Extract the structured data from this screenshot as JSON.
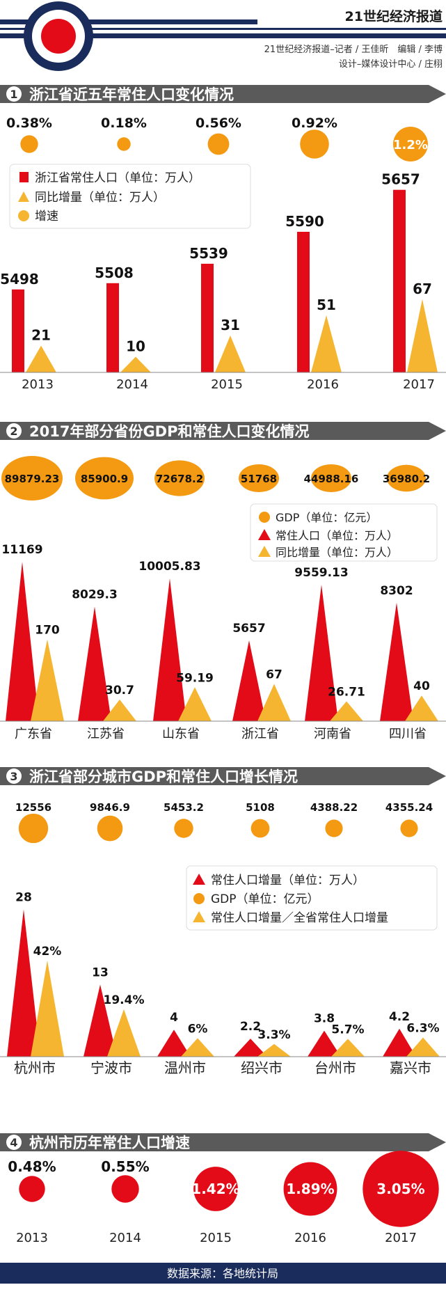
{
  "header": {
    "brand": "21世纪经济报道",
    "credit_line1": "21世纪经济报道–记者 / 王佳昕　编辑 / 李博",
    "credit_line2": "设计–媒体设计中心 / 庄栩"
  },
  "colors": {
    "red": "#e30b17",
    "orange": "#f39a12",
    "yellow": "#f5b530",
    "dark": "#333333",
    "navy": "#1a2c5b",
    "gray": "#5a5a5a"
  },
  "sections": [
    {
      "num": "1",
      "title": "浙江省近五年常住人口变化情况"
    },
    {
      "num": "2",
      "title": "2017年部分省份GDP和常住人口变化情况"
    },
    {
      "num": "3",
      "title": "浙江省部分城市GDP和常住人口增长情况"
    },
    {
      "num": "4",
      "title": "杭州市历年常住人口增速"
    }
  ],
  "footer": {
    "source": "数据来源：各地统计局"
  },
  "chart_data": [
    {
      "type": "bar",
      "categories": [
        "2013",
        "2014",
        "2015",
        "2016",
        "2017"
      ],
      "legend": [
        "浙江省常住人口（单位：万人）",
        "同比增量（单位：万人）",
        "增速"
      ],
      "series": [
        {
          "name": "浙江省常住人口（单位：万人）",
          "values": [
            5498,
            5508,
            5539,
            5590,
            5657
          ]
        },
        {
          "name": "同比增量（单位：万人）",
          "values": [
            21,
            10,
            31,
            51,
            67
          ]
        },
        {
          "name": "增速",
          "values": [
            "0.38%",
            "0.18%",
            "0.56%",
            "0.92%",
            "1.2%"
          ]
        }
      ]
    },
    {
      "type": "bar",
      "categories": [
        "广东省",
        "江苏省",
        "山东省",
        "浙江省",
        "河南省",
        "四川省"
      ],
      "legend": [
        "GDP（单位：亿元）",
        "常住人口（单位：万人）",
        "同比增量（单位：万人）"
      ],
      "series": [
        {
          "name": "GDP（单位：亿元）",
          "values": [
            89879.23,
            85900.9,
            72678.2,
            51768,
            44988.16,
            36980.2
          ]
        },
        {
          "name": "常住人口（单位：万人）",
          "values": [
            11169,
            8029.3,
            10005.83,
            5657,
            9559.13,
            8302
          ]
        },
        {
          "name": "同比增量（单位：万人）",
          "values": [
            170,
            30.7,
            59.19,
            67,
            26.71,
            40
          ]
        }
      ]
    },
    {
      "type": "bar",
      "categories": [
        "杭州市",
        "宁波市",
        "温州市",
        "绍兴市",
        "台州市",
        "嘉兴市"
      ],
      "legend": [
        "常住人口增量（单位：万人）",
        "GDP（单位：亿元）",
        "常住人口增量／全省常住人口增量"
      ],
      "series": [
        {
          "name": "常住人口增量（单位：万人）",
          "values": [
            28,
            13,
            4,
            2.2,
            3.8,
            4.2
          ]
        },
        {
          "name": "GDP（单位：亿元）",
          "values": [
            12556,
            9846.9,
            5453.2,
            5108,
            4388.22,
            4355.24
          ]
        },
        {
          "name": "常住人口增量／全省常住人口增量",
          "values": [
            "42%",
            "19.4%",
            "6%",
            "3.3%",
            "5.7%",
            "6.3%"
          ]
        }
      ]
    },
    {
      "type": "scatter",
      "categories": [
        "2013",
        "2014",
        "2015",
        "2016",
        "2017"
      ],
      "series": [
        {
          "values": [
            "0.48%",
            "0.55%",
            "1.42%",
            "1.89%",
            "3.05%"
          ]
        }
      ]
    }
  ]
}
